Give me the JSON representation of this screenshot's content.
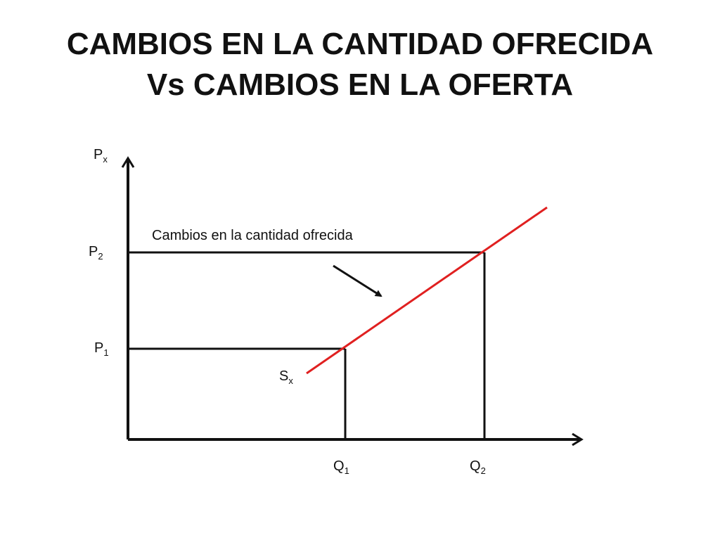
{
  "title": {
    "line1": "CAMBIOS EN LA CANTIDAD OFRECIDA",
    "line2": "Vs CAMBIOS EN LA OFERTA"
  },
  "diagram": {
    "y_axis": {
      "base": "P",
      "sub": "x"
    },
    "x_axis_ticks": [
      {
        "base": "Q",
        "sub": "1"
      },
      {
        "base": "Q",
        "sub": "2"
      }
    ],
    "y_axis_ticks": [
      {
        "base": "P",
        "sub": "1"
      },
      {
        "base": "P",
        "sub": "2"
      }
    ],
    "supply_curve": {
      "base": "S",
      "sub": "x",
      "color": "#e02020"
    },
    "annotation": "Cambios en la cantidad ofrecida"
  }
}
